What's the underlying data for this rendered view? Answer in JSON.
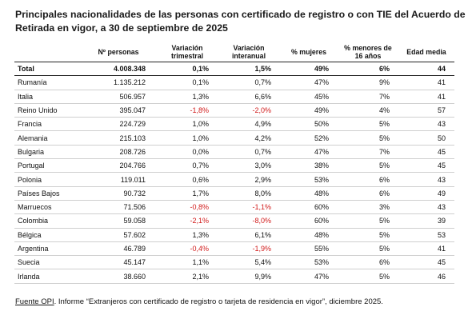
{
  "title": {
    "line1": "Principales nacionalidades de las personas con certificado de registro o con TIE del Acuerdo de",
    "line2": "Retirada en vigor, a 30 de septiembre de 2025"
  },
  "table": {
    "headers": {
      "country": "",
      "personas": "Nº personas",
      "var_trim_1": "Variación",
      "var_trim_2": "trimestral",
      "var_inter_1": "Variación",
      "var_inter_2": "interanual",
      "mujeres": "% mujeres",
      "menores_1": "% menores de",
      "menores_2": "16 años",
      "edad": "Edad media"
    },
    "rows": [
      {
        "country": "Total",
        "personas": "4.008.348",
        "var_trim": "0,1%",
        "var_inter": "1,5%",
        "mujeres": "49%",
        "menores": "6%",
        "edad": "44",
        "neg_trim": false,
        "neg_inter": false
      },
      {
        "country": "Rumanía",
        "personas": "1.135.212",
        "var_trim": "0,1%",
        "var_inter": "0,7%",
        "mujeres": "47%",
        "menores": "9%",
        "edad": "41",
        "neg_trim": false,
        "neg_inter": false
      },
      {
        "country": "Italia",
        "personas": "506.957",
        "var_trim": "1,3%",
        "var_inter": "6,6%",
        "mujeres": "45%",
        "menores": "7%",
        "edad": "41",
        "neg_trim": false,
        "neg_inter": false
      },
      {
        "country": "Reino Unido",
        "personas": "395.047",
        "var_trim": "-1,8%",
        "var_inter": "-2,0%",
        "mujeres": "49%",
        "menores": "4%",
        "edad": "57",
        "neg_trim": true,
        "neg_inter": true
      },
      {
        "country": "Francia",
        "personas": "224.729",
        "var_trim": "1,0%",
        "var_inter": "4,9%",
        "mujeres": "50%",
        "menores": "5%",
        "edad": "43",
        "neg_trim": false,
        "neg_inter": false
      },
      {
        "country": "Alemania",
        "personas": "215.103",
        "var_trim": "1,0%",
        "var_inter": "4,2%",
        "mujeres": "52%",
        "menores": "5%",
        "edad": "50",
        "neg_trim": false,
        "neg_inter": false
      },
      {
        "country": "Bulgaria",
        "personas": "208.726",
        "var_trim": "0,0%",
        "var_inter": "0,7%",
        "mujeres": "47%",
        "menores": "7%",
        "edad": "45",
        "neg_trim": false,
        "neg_inter": false
      },
      {
        "country": "Portugal",
        "personas": "204.766",
        "var_trim": "0,7%",
        "var_inter": "3,0%",
        "mujeres": "38%",
        "menores": "5%",
        "edad": "45",
        "neg_trim": false,
        "neg_inter": false
      },
      {
        "country": "Polonia",
        "personas": "119.011",
        "var_trim": "0,6%",
        "var_inter": "2,9%",
        "mujeres": "53%",
        "menores": "6%",
        "edad": "43",
        "neg_trim": false,
        "neg_inter": false
      },
      {
        "country": "Países Bajos",
        "personas": "90.732",
        "var_trim": "1,7%",
        "var_inter": "8,0%",
        "mujeres": "48%",
        "menores": "6%",
        "edad": "49",
        "neg_trim": false,
        "neg_inter": false
      },
      {
        "country": "Marruecos",
        "personas": "71.506",
        "var_trim": "-0,8%",
        "var_inter": "-1,1%",
        "mujeres": "60%",
        "menores": "3%",
        "edad": "43",
        "neg_trim": true,
        "neg_inter": true
      },
      {
        "country": "Colombia",
        "personas": "59.058",
        "var_trim": "-2,1%",
        "var_inter": "-8,0%",
        "mujeres": "60%",
        "menores": "5%",
        "edad": "39",
        "neg_trim": true,
        "neg_inter": true
      },
      {
        "country": "Bélgica",
        "personas": "57.602",
        "var_trim": "1,3%",
        "var_inter": "6,1%",
        "mujeres": "48%",
        "menores": "5%",
        "edad": "53",
        "neg_trim": false,
        "neg_inter": false
      },
      {
        "country": "Argentina",
        "personas": "46.789",
        "var_trim": "-0,4%",
        "var_inter": "-1,9%",
        "mujeres": "55%",
        "menores": "5%",
        "edad": "41",
        "neg_trim": true,
        "neg_inter": true
      },
      {
        "country": "Suecia",
        "personas": "45.147",
        "var_trim": "1,1%",
        "var_inter": "5,4%",
        "mujeres": "53%",
        "menores": "6%",
        "edad": "45",
        "neg_trim": false,
        "neg_inter": false
      },
      {
        "country": "Irlanda",
        "personas": "38.660",
        "var_trim": "2,1%",
        "var_inter": "9,9%",
        "mujeres": "47%",
        "menores": "5%",
        "edad": "46",
        "neg_trim": false,
        "neg_inter": false
      }
    ]
  },
  "footer": {
    "source_label": "Fuente OPI",
    "text": ". Informe “Extranjeros con certificado de registro o tarjeta de residencia en vigor”, diciembre 2025."
  },
  "colors": {
    "negative": "#d11a1a",
    "text": "#111111"
  }
}
